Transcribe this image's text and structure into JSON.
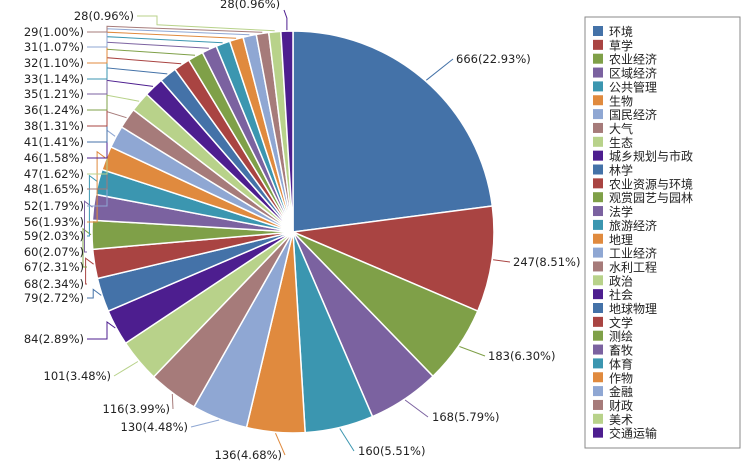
{
  "chart_data": {
    "type": "pie",
    "title": "",
    "legend_position": "right",
    "categories": [
      "环境",
      "草学",
      "农业经济",
      "区域经济",
      "公共管理",
      "生物",
      "国民经济",
      "大气",
      "生态",
      "城乡规划与市政",
      "林学",
      "农业资源与环境",
      "观赏园艺与园林",
      "法学",
      "旅游经济",
      "地理",
      "工业经济",
      "水利工程",
      "政治",
      "社会",
      "地球物理",
      "文学",
      "测绘",
      "畜牧",
      "体育",
      "作物",
      "金融",
      "财政",
      "美术",
      "交通运输"
    ],
    "values": [
      666,
      247,
      183,
      168,
      160,
      136,
      130,
      116,
      101,
      84,
      79,
      68,
      67,
      60,
      59,
      56,
      52,
      48,
      47,
      46,
      41,
      38,
      36,
      35,
      33,
      32,
      31,
      29,
      28,
      28
    ],
    "data_labels": [
      "666(22.93%)",
      "247(8.51%)",
      "183(6.30%)",
      "168(5.79%)",
      "160(5.51%)",
      "136(4.68%)",
      "130(4.48%)",
      "116(3.99%)",
      "101(3.48%)",
      "84(2.89%)",
      "79(2.72%)",
      "68(2.34%)",
      "67(2.31%)",
      "60(2.07%)",
      "59(2.03%)",
      "56(1.93%)",
      "52(1.79%)",
      "48(1.65%)",
      "47(1.62%)",
      "46(1.58%)",
      "41(1.41%)",
      "38(1.31%)",
      "36(1.24%)",
      "35(1.21%)",
      "33(1.14%)",
      "32(1.10%)",
      "31(1.07%)",
      "29(1.00%)",
      "28(0.96%)",
      "28(0.96%)"
    ],
    "colors": [
      "#4472a8",
      "#a94442",
      "#7fa048",
      "#7b62a0",
      "#3b96b0",
      "#e08a3e",
      "#8fa7d3",
      "#a67b7a",
      "#b8d28a",
      "#4d1e8f",
      "#4472a8",
      "#a94442",
      "#7fa048",
      "#7b62a0",
      "#3b96b0",
      "#e08a3e",
      "#8fa7d3",
      "#a67b7a",
      "#b8d28a",
      "#4d1e8f",
      "#4472a8",
      "#a94442",
      "#7fa048",
      "#7b62a0",
      "#3b96b0",
      "#e08a3e",
      "#8fa7d3",
      "#a67b7a",
      "#b8d28a",
      "#4d1e8f"
    ]
  }
}
